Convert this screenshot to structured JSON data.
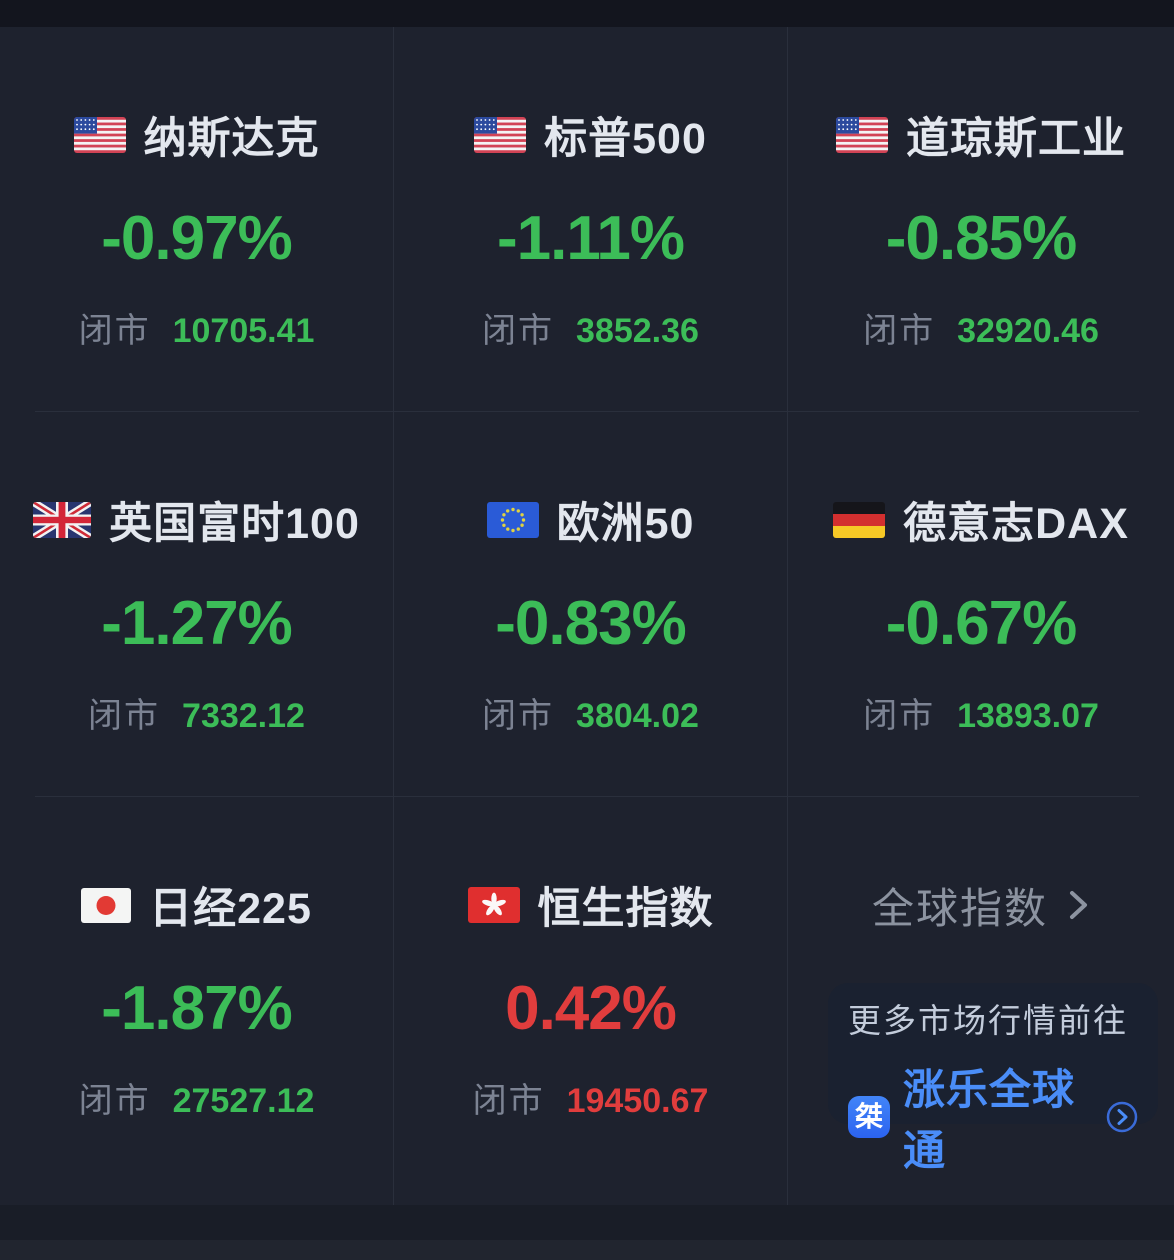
{
  "colors": {
    "background": "#1E222E",
    "up_red": "#E13D3D",
    "down_green": "#3CBD58",
    "brand_blue": "#4A8DF8"
  },
  "cells": [
    {
      "flag": "us",
      "flag_name": "usa-flag-icon",
      "name": "纳斯达克",
      "pct": "-0.97%",
      "close_label": "闭市",
      "close": "10705.41",
      "direction": "down"
    },
    {
      "flag": "us",
      "flag_name": "usa-flag-icon",
      "name": "标普500",
      "pct": "-1.11%",
      "close_label": "闭市",
      "close": "3852.36",
      "direction": "down"
    },
    {
      "flag": "us",
      "flag_name": "usa-flag-icon",
      "name": "道琼斯工业",
      "pct": "-0.85%",
      "close_label": "闭市",
      "close": "32920.46",
      "direction": "down"
    },
    {
      "flag": "uk",
      "flag_name": "uk-flag-icon",
      "name": "英国富时100",
      "pct": "-1.27%",
      "close_label": "闭市",
      "close": "7332.12",
      "direction": "down"
    },
    {
      "flag": "eu",
      "flag_name": "eu-flag-icon",
      "name": "欧洲50",
      "pct": "-0.83%",
      "close_label": "闭市",
      "close": "3804.02",
      "direction": "down"
    },
    {
      "flag": "de",
      "flag_name": "germany-flag-icon",
      "name": "德意志DAX",
      "pct": "-0.67%",
      "close_label": "闭市",
      "close": "13893.07",
      "direction": "down"
    },
    {
      "flag": "jp",
      "flag_name": "japan-flag-icon",
      "name": "日经225",
      "pct": "-1.87%",
      "close_label": "闭市",
      "close": "27527.12",
      "direction": "down"
    },
    {
      "flag": "hk",
      "flag_name": "hongkong-flag-icon",
      "name": "恒生指数",
      "pct": "0.42%",
      "close_label": "闭市",
      "close": "19450.67",
      "direction": "up"
    }
  ],
  "more_cell": {
    "link_label": "全球指数",
    "promo_line1": "更多市场行情前往",
    "promo_app": "涨乐全球通",
    "app_icon_char": "桀"
  }
}
